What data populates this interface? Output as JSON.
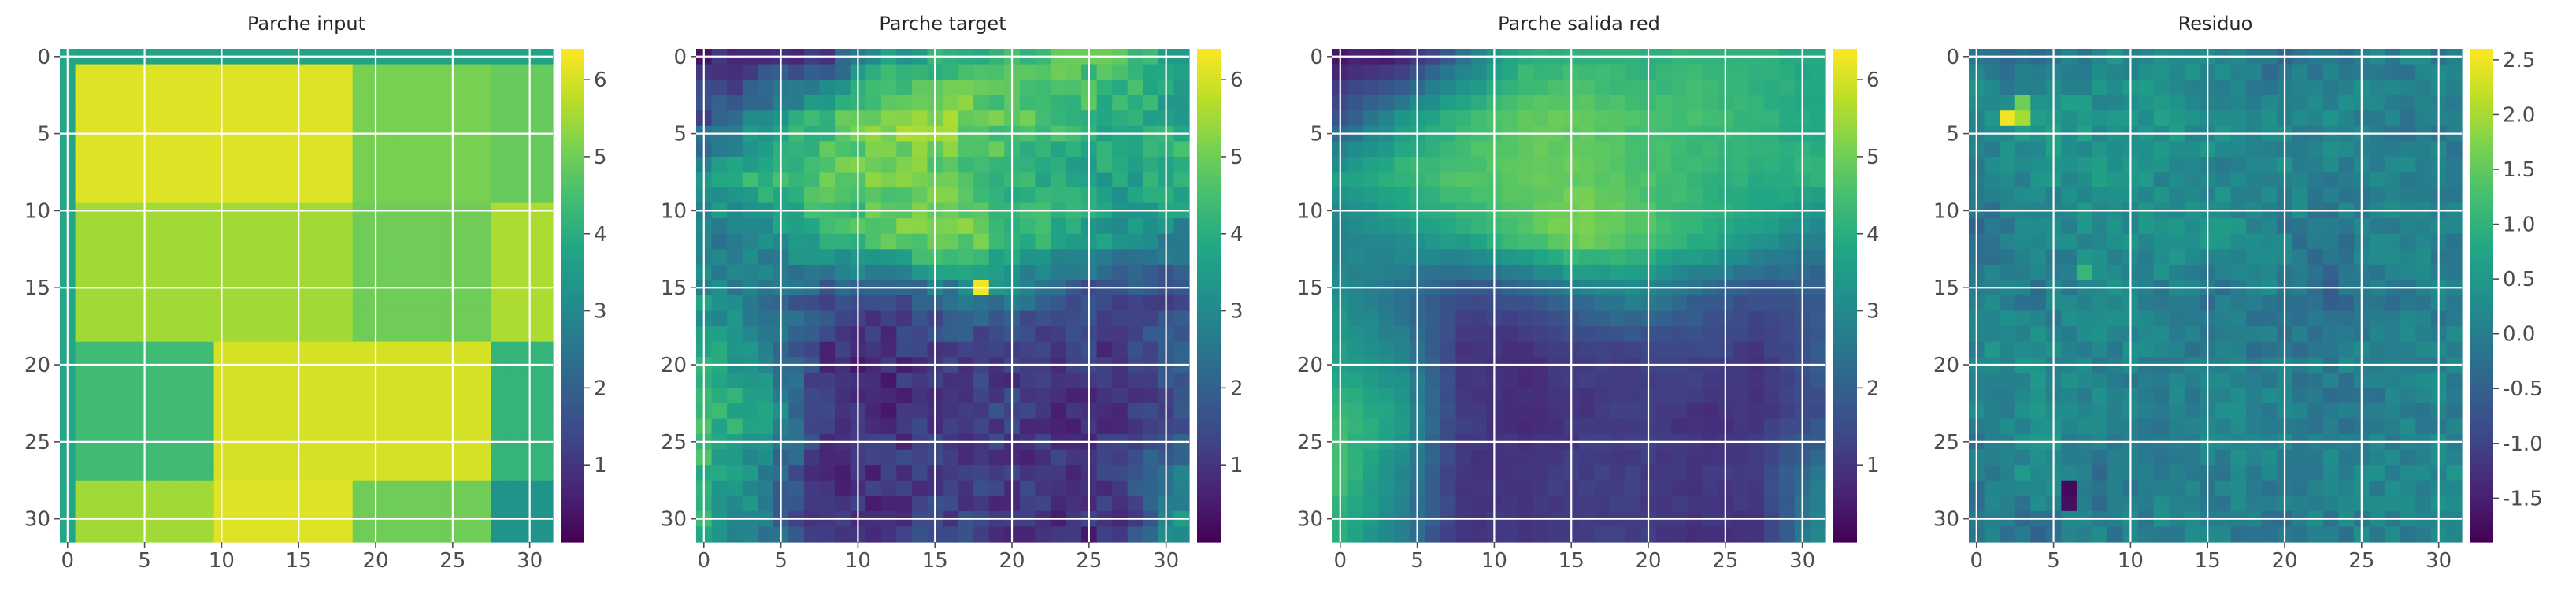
{
  "chart_data": [
    {
      "type": "heatmap",
      "title": "Parche input",
      "xlabel": "",
      "ylabel": "",
      "rows": 32,
      "cols": 32,
      "x_ticks": [
        "0",
        "5",
        "10",
        "15",
        "20",
        "25",
        "30"
      ],
      "y_ticks": [
        "0",
        "5",
        "10",
        "15",
        "20",
        "25",
        "30"
      ],
      "colormap": "viridis",
      "grid": true,
      "colorbar": {
        "vmin": 0.0,
        "vmax": 6.4,
        "ticks": [
          "1",
          "2",
          "3",
          "4",
          "5",
          "6"
        ],
        "tick_values": [
          1,
          2,
          3,
          4,
          5,
          6
        ]
      },
      "value_blocks": [
        {
          "rows": [
            0,
            31
          ],
          "cols": [
            0,
            31
          ],
          "value": 3.7
        },
        {
          "rows": [
            0,
            31
          ],
          "cols": [
            0,
            0
          ],
          "value": 3.8
        },
        {
          "rows": [
            1,
            9
          ],
          "cols": [
            1,
            18
          ],
          "value": 6.1
        },
        {
          "rows": [
            1,
            9
          ],
          "cols": [
            19,
            27
          ],
          "value": 5.1
        },
        {
          "rows": [
            1,
            9
          ],
          "cols": [
            28,
            31
          ],
          "value": 4.9
        },
        {
          "rows": [
            10,
            18
          ],
          "cols": [
            1,
            9
          ],
          "value": 5.5
        },
        {
          "rows": [
            10,
            18
          ],
          "cols": [
            10,
            18
          ],
          "value": 5.5
        },
        {
          "rows": [
            10,
            18
          ],
          "cols": [
            19,
            27
          ],
          "value": 5.0
        },
        {
          "rows": [
            10,
            18
          ],
          "cols": [
            28,
            31
          ],
          "value": 5.6
        },
        {
          "rows": [
            19,
            27
          ],
          "cols": [
            1,
            9
          ],
          "value": 4.4
        },
        {
          "rows": [
            19,
            27
          ],
          "cols": [
            10,
            27
          ],
          "value": 6.0
        },
        {
          "rows": [
            19,
            27
          ],
          "cols": [
            28,
            31
          ],
          "value": 4.2
        },
        {
          "rows": [
            28,
            31
          ],
          "cols": [
            1,
            9
          ],
          "value": 5.5
        },
        {
          "rows": [
            28,
            31
          ],
          "cols": [
            10,
            18
          ],
          "value": 6.1
        },
        {
          "rows": [
            28,
            31
          ],
          "cols": [
            19,
            27
          ],
          "value": 5.0
        },
        {
          "rows": [
            28,
            31
          ],
          "cols": [
            28,
            31
          ],
          "value": 3.3
        }
      ]
    },
    {
      "type": "heatmap",
      "title": "Parche target",
      "xlabel": "",
      "ylabel": "",
      "rows": 32,
      "cols": 32,
      "x_ticks": [
        "0",
        "5",
        "10",
        "15",
        "20",
        "25",
        "30"
      ],
      "y_ticks": [
        "0",
        "5",
        "10",
        "15",
        "20",
        "25",
        "30"
      ],
      "colormap": "viridis",
      "grid": true,
      "colorbar": {
        "vmin": 0.0,
        "vmax": 6.4,
        "ticks": [
          "1",
          "2",
          "3",
          "4",
          "5",
          "6"
        ],
        "tick_values": [
          1,
          2,
          3,
          4,
          5,
          6
        ]
      },
      "value_keypoints": [
        [
          0.6,
          0.8,
          1.2,
          3.5,
          4.0,
          4.2,
          4.6,
          4.5,
          3.8
        ],
        [
          1.5,
          3.0,
          4.2,
          5.3,
          5.4,
          4.8,
          4.6,
          4.0,
          3.6
        ],
        [
          3.6,
          4.4,
          4.8,
          5.0,
          4.8,
          4.3,
          3.8,
          3.6,
          4.5
        ],
        [
          2.5,
          3.2,
          3.9,
          4.7,
          5.6,
          4.6,
          4.0,
          3.4,
          2.8
        ],
        [
          3.3,
          2.3,
          1.8,
          1.5,
          2.2,
          2.8,
          1.5,
          1.4,
          1.4
        ],
        [
          3.8,
          3.2,
          0.9,
          0.8,
          1.2,
          1.0,
          1.2,
          1.0,
          2.0
        ],
        [
          4.3,
          3.8,
          1.0,
          0.8,
          1.1,
          1.4,
          0.8,
          0.9,
          1.5
        ],
        [
          4.2,
          2.8,
          0.8,
          1.0,
          1.2,
          1.1,
          1.0,
          1.3,
          2.8
        ],
        [
          3.9,
          2.6,
          1.0,
          0.9,
          1.4,
          1.1,
          0.8,
          0.9,
          3.3
        ]
      ],
      "highlight": {
        "row": 15,
        "col": 18,
        "value": 6.3
      }
    },
    {
      "type": "heatmap",
      "title": "Parche salida red",
      "xlabel": "",
      "ylabel": "",
      "rows": 32,
      "cols": 32,
      "x_ticks": [
        "0",
        "5",
        "10",
        "15",
        "20",
        "25",
        "30"
      ],
      "y_ticks": [
        "0",
        "5",
        "10",
        "15",
        "20",
        "25",
        "30"
      ],
      "colormap": "viridis",
      "grid": true,
      "colorbar": {
        "vmin": 0.0,
        "vmax": 6.4,
        "ticks": [
          "1",
          "2",
          "3",
          "4",
          "5",
          "6"
        ],
        "tick_values": [
          1,
          2,
          3,
          4,
          5,
          6
        ]
      },
      "value_keypoints": [
        [
          0.5,
          0.6,
          2.2,
          4.0,
          4.2,
          4.0,
          4.2,
          4.0,
          3.8
        ],
        [
          1.6,
          3.2,
          4.2,
          4.8,
          4.9,
          4.5,
          4.5,
          4.2,
          3.8
        ],
        [
          3.6,
          4.3,
          4.6,
          4.8,
          4.9,
          4.6,
          4.2,
          4.0,
          4.2
        ],
        [
          2.8,
          3.2,
          3.8,
          4.6,
          5.3,
          4.7,
          4.2,
          3.5,
          2.8
        ],
        [
          3.2,
          2.3,
          1.5,
          1.6,
          2.4,
          2.9,
          2.0,
          1.6,
          1.8
        ],
        [
          3.6,
          3.0,
          1.0,
          0.8,
          1.2,
          1.2,
          1.4,
          1.0,
          1.8
        ],
        [
          4.4,
          3.6,
          1.2,
          0.8,
          1.0,
          1.2,
          0.9,
          1.0,
          1.5
        ],
        [
          4.4,
          3.0,
          1.0,
          1.0,
          1.2,
          1.2,
          1.0,
          1.2,
          2.5
        ],
        [
          4.0,
          2.8,
          1.0,
          1.0,
          1.2,
          1.2,
          0.9,
          1.0,
          3.0
        ]
      ]
    },
    {
      "type": "heatmap",
      "title": "Residuo",
      "xlabel": "",
      "ylabel": "",
      "rows": 32,
      "cols": 32,
      "x_ticks": [
        "0",
        "5",
        "10",
        "15",
        "20",
        "25",
        "30"
      ],
      "y_ticks": [
        "0",
        "5",
        "10",
        "15",
        "20",
        "25",
        "30"
      ],
      "colormap": "viridis",
      "grid": true,
      "colorbar": {
        "vmin": -1.9,
        "vmax": 2.6,
        "ticks": [
          "-1.5",
          "-1.0",
          "-0.5",
          "0.0",
          "0.5",
          "1.0",
          "1.5",
          "2.0",
          "2.5"
        ],
        "tick_values": [
          -1.5,
          -1.0,
          -0.5,
          0.0,
          0.5,
          1.0,
          1.5,
          2.0,
          2.5
        ]
      },
      "value_keypoints": [
        [
          0.0,
          -0.3,
          0.2,
          0.3,
          0.1,
          -0.2,
          0.0,
          0.1,
          0.0
        ],
        [
          0.3,
          0.6,
          0.4,
          0.5,
          0.4,
          0.1,
          0.3,
          0.0,
          -0.1
        ],
        [
          0.0,
          0.2,
          0.5,
          0.3,
          0.1,
          0.2,
          0.0,
          0.2,
          0.1
        ],
        [
          -0.2,
          0.1,
          0.3,
          0.4,
          0.5,
          0.0,
          -0.1,
          0.2,
          0.0
        ],
        [
          0.1,
          -0.1,
          0.3,
          0.0,
          -0.2,
          0.1,
          -0.4,
          -0.1,
          0.0
        ],
        [
          0.2,
          0.4,
          0.1,
          0.1,
          0.0,
          -0.1,
          0.0,
          0.1,
          0.2
        ],
        [
          0.1,
          0.3,
          0.2,
          0.0,
          0.2,
          0.2,
          -0.1,
          0.0,
          0.0
        ],
        [
          -0.1,
          0.4,
          -0.2,
          0.1,
          0.1,
          0.0,
          0.2,
          0.1,
          0.3
        ],
        [
          0.0,
          -0.3,
          0.0,
          0.1,
          0.0,
          -0.1,
          0.0,
          0.1,
          0.2
        ]
      ],
      "highlights": [
        {
          "row": 4,
          "col": 2,
          "value": 2.5
        },
        {
          "row": 4,
          "col": 3,
          "value": 2.0
        },
        {
          "row": 3,
          "col": 3,
          "value": 1.6
        },
        {
          "row": 28,
          "col": 6,
          "value": -1.8
        },
        {
          "row": 29,
          "col": 6,
          "value": -1.7
        },
        {
          "row": 14,
          "col": 7,
          "value": 1.1
        }
      ]
    }
  ]
}
